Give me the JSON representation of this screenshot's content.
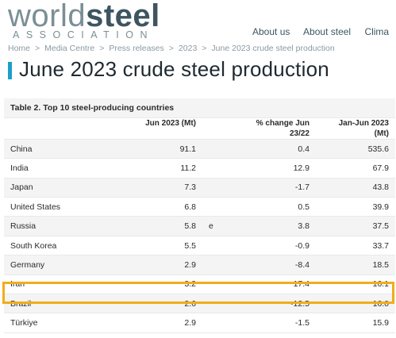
{
  "header": {
    "logo_light": "world",
    "logo_bold": "steel",
    "logo_sub": "ASSOCIATION",
    "nav": [
      "About us",
      "About steel",
      "Clima"
    ]
  },
  "breadcrumb": [
    "Home",
    "Media Centre",
    "Press releases",
    "2023",
    "June 2023 crude steel production"
  ],
  "breadcrumb_sep": ">",
  "page_title": "June 2023 crude steel production",
  "table": {
    "caption": "Table 2. Top 10 steel-producing countries",
    "headers": {
      "col1": "Jun 2023 (Mt)",
      "col3a": "% change Jun",
      "col3b": "23/22",
      "col4a": "Jan-Jun 2023",
      "col4b": "(Mt)"
    },
    "rows": [
      {
        "country": "China",
        "jun": "91.1",
        "flag": "",
        "change": "0.4",
        "ytd": "535.6"
      },
      {
        "country": "India",
        "jun": "11.2",
        "flag": "",
        "change": "12.9",
        "ytd": "67.9"
      },
      {
        "country": "Japan",
        "jun": "7.3",
        "flag": "",
        "change": "-1.7",
        "ytd": "43.8"
      },
      {
        "country": "United States",
        "jun": "6.8",
        "flag": "",
        "change": "0.5",
        "ytd": "39.9"
      },
      {
        "country": "Russia",
        "jun": "5.8",
        "flag": "e",
        "change": "3.8",
        "ytd": "37.5"
      },
      {
        "country": "South Korea",
        "jun": "5.5",
        "flag": "",
        "change": "-0.9",
        "ytd": "33.7"
      },
      {
        "country": "Germany",
        "jun": "2.9",
        "flag": "",
        "change": "-8.4",
        "ytd": "18.5"
      },
      {
        "country": "Iran",
        "jun": "3.2",
        "flag": "",
        "change": "17.4",
        "ytd": "16.1"
      },
      {
        "country": "Brazil",
        "jun": "2.6",
        "flag": "",
        "change": "-12.5",
        "ytd": "16.0"
      },
      {
        "country": "Türkiye",
        "jun": "2.9",
        "flag": "",
        "change": "-1.5",
        "ytd": "15.9"
      }
    ]
  },
  "colors": {
    "accent": "#1b9fcc",
    "highlight": "#f0ad1d"
  }
}
